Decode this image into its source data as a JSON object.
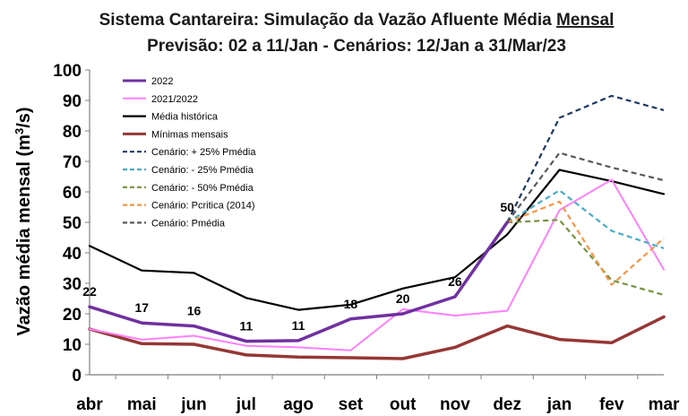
{
  "chart_data": {
    "type": "line",
    "title": "Sistema Cantareira: Simulação da Vazão Afluente Média Mensal",
    "title_prefix": "Sistema Cantareira: Simulação da Vazão Afluente Média ",
    "title_underlined": "Mensal",
    "subtitle": "Previsão: 02 a 11/Jan - Cenários: 12/Jan a 31/Mar/23",
    "ylabel": "Vazão média mensal (m³/s)",
    "ylabel_main": "Vazão média mensal (m",
    "ylabel_sup": "3",
    "ylabel_end": "/s)",
    "xlabel": "",
    "ylim": [
      0,
      100
    ],
    "yticks": [
      0,
      10,
      20,
      30,
      40,
      50,
      60,
      70,
      80,
      90,
      100
    ],
    "grid": false,
    "legend_position": "top-left",
    "categories": [
      "abr",
      "mai",
      "jun",
      "jul",
      "ago",
      "set",
      "out",
      "nov",
      "dez",
      "jan",
      "fev",
      "mar"
    ],
    "series": [
      {
        "name": "2022",
        "color": "#7030a0",
        "dash": "solid",
        "width": 3.5,
        "values": [
          22.3,
          17.0,
          16.0,
          11.0,
          11.2,
          18.3,
          20.0,
          25.6,
          50.0,
          null,
          null,
          null
        ],
        "labels": [
          "22",
          "17",
          "16",
          "11",
          "11",
          "18",
          "20",
          "26",
          "50",
          null,
          null,
          null
        ]
      },
      {
        "name": "2021/2022",
        "color": "#ff80ff",
        "dash": "solid",
        "width": 2,
        "values": [
          15.0,
          11.5,
          12.8,
          9.5,
          9.0,
          8.0,
          21.5,
          19.4,
          21.0,
          54.0,
          64.0,
          34.5
        ]
      },
      {
        "name": "Média histórica",
        "color": "#000000",
        "dash": "solid",
        "width": 2.2,
        "values": [
          42.3,
          34.2,
          33.4,
          25.2,
          21.3,
          23.0,
          28.3,
          32.0,
          46.0,
          67.2,
          63.5,
          59.3
        ]
      },
      {
        "name": "Mínimas mensais",
        "color": "#953735",
        "dash": "solid",
        "width": 3.5,
        "values": [
          15.0,
          10.2,
          10.0,
          6.5,
          5.8,
          5.6,
          5.3,
          9.0,
          16.0,
          11.6,
          10.5,
          19.0
        ]
      },
      {
        "name": "Cenário: + 25% Pmédia",
        "color": "#1f3864",
        "dash": "dashed",
        "width": 2.2,
        "values": [
          null,
          null,
          null,
          null,
          null,
          null,
          null,
          null,
          50.0,
          84.3,
          91.5,
          86.8
        ]
      },
      {
        "name": "Cenário: - 25% Pmédia",
        "color": "#4bacc6",
        "dash": "dashed",
        "width": 2.2,
        "values": [
          null,
          null,
          null,
          null,
          null,
          null,
          null,
          null,
          50.0,
          60.5,
          47.2,
          41.5
        ]
      },
      {
        "name": "Cenário: - 50% Pmédia",
        "color": "#77933c",
        "dash": "dashed",
        "width": 2.2,
        "values": [
          null,
          null,
          null,
          null,
          null,
          null,
          null,
          null,
          50.0,
          50.8,
          31.0,
          26.2
        ]
      },
      {
        "name": "Cenário: Pcritica (2014)",
        "color": "#f79646",
        "dash": "dashed",
        "width": 2.2,
        "values": [
          null,
          null,
          null,
          null,
          null,
          null,
          null,
          null,
          50.0,
          56.8,
          29.5,
          44.8
        ]
      },
      {
        "name": "Cenário: Pmédia",
        "color": "#595959",
        "dash": "dashed",
        "width": 2.2,
        "values": [
          null,
          null,
          null,
          null,
          null,
          null,
          null,
          null,
          50.0,
          72.8,
          68.0,
          63.8
        ]
      }
    ]
  }
}
